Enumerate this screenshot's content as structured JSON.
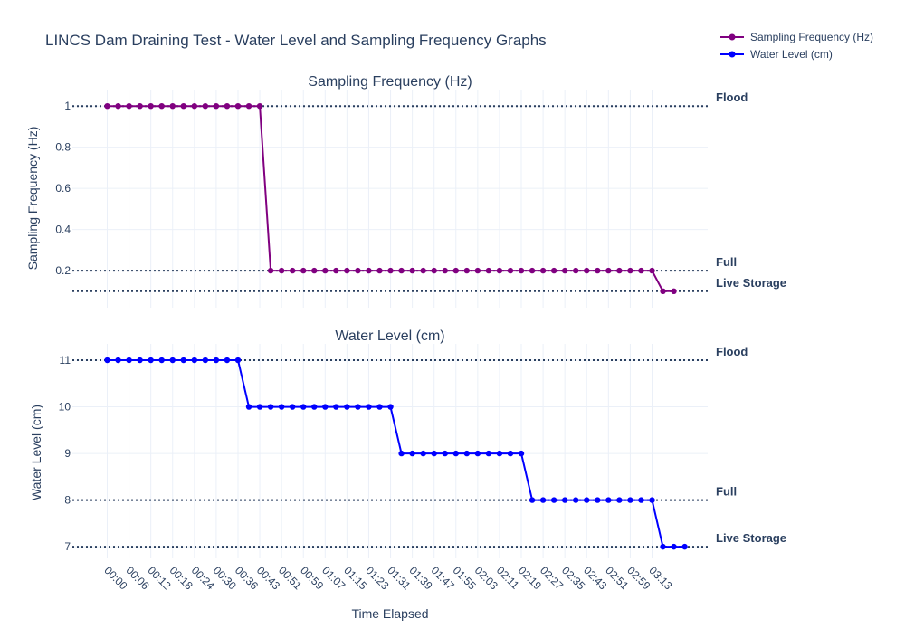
{
  "title": "LINCS Dam Draining Test - Water Level and Sampling Frequency Graphs",
  "legend": {
    "placement": "top-right",
    "items": [
      {
        "label": "Sampling Frequency (Hz)",
        "color": "#800080"
      },
      {
        "label": "Water Level (cm)",
        "color": "#0000ff"
      }
    ]
  },
  "x_axis_title": "Time Elapsed",
  "x_tick_labels": [
    "00:00",
    "00:06",
    "00:12",
    "00:18",
    "00:24",
    "00:30",
    "00:36",
    "00:43",
    "00:51",
    "00:59",
    "01:07",
    "01:15",
    "01:23",
    "01:31",
    "01:39",
    "01:47",
    "01:55",
    "02:03",
    "02:11",
    "02:19",
    "02:27",
    "02:35",
    "02:43",
    "02:51",
    "02:59",
    "03:13"
  ],
  "chart_data": [
    {
      "type": "line",
      "title": "Sampling Frequency (Hz)",
      "ylabel": "Sampling Frequency (Hz)",
      "ylim": [
        0.02,
        1.08
      ],
      "yticks": [
        1,
        0.8,
        0.6,
        0.4,
        0.2
      ],
      "ytick_labels": [
        "1",
        "0.8",
        "0.6",
        "0.4",
        "0.2"
      ],
      "grid": true,
      "series": [
        {
          "name": "Sampling Frequency (Hz)",
          "color": "#800080",
          "values": [
            1,
            1,
            1,
            1,
            1,
            1,
            1,
            1,
            1,
            1,
            1,
            1,
            1,
            1,
            1,
            0.2,
            0.2,
            0.2,
            0.2,
            0.2,
            0.2,
            0.2,
            0.2,
            0.2,
            0.2,
            0.2,
            0.2,
            0.2,
            0.2,
            0.2,
            0.2,
            0.2,
            0.2,
            0.2,
            0.2,
            0.2,
            0.2,
            0.2,
            0.2,
            0.2,
            0.2,
            0.2,
            0.2,
            0.2,
            0.2,
            0.2,
            0.2,
            0.2,
            0.2,
            0.2,
            0.2,
            0.1,
            0.1
          ]
        }
      ],
      "reference_lines": [
        {
          "label": "Flood",
          "value": 1
        },
        {
          "label": "Full",
          "value": 0.2
        },
        {
          "label": "Live Storage",
          "value": 0.1
        }
      ]
    },
    {
      "type": "line",
      "title": "Water Level (cm)",
      "ylabel": "Water Level (cm)",
      "xlabel": "Time Elapsed",
      "ylim": [
        6.75,
        11.35
      ],
      "yticks": [
        11,
        10,
        9,
        8,
        7
      ],
      "ytick_labels": [
        "11",
        "10",
        "9",
        "8",
        "7"
      ],
      "grid": true,
      "series": [
        {
          "name": "Water Level (cm)",
          "color": "#0000ff",
          "values": [
            11,
            11,
            11,
            11,
            11,
            11,
            11,
            11,
            11,
            11,
            11,
            11,
            11,
            10,
            10,
            10,
            10,
            10,
            10,
            10,
            10,
            10,
            10,
            10,
            10,
            10,
            10,
            9,
            9,
            9,
            9,
            9,
            9,
            9,
            9,
            9,
            9,
            9,
            9,
            8,
            8,
            8,
            8,
            8,
            8,
            8,
            8,
            8,
            8,
            8,
            8,
            7,
            7,
            7
          ]
        }
      ],
      "reference_lines": [
        {
          "label": "Flood",
          "value": 11
        },
        {
          "label": "Full",
          "value": 8
        },
        {
          "label": "Live Storage",
          "value": 7
        }
      ]
    }
  ]
}
